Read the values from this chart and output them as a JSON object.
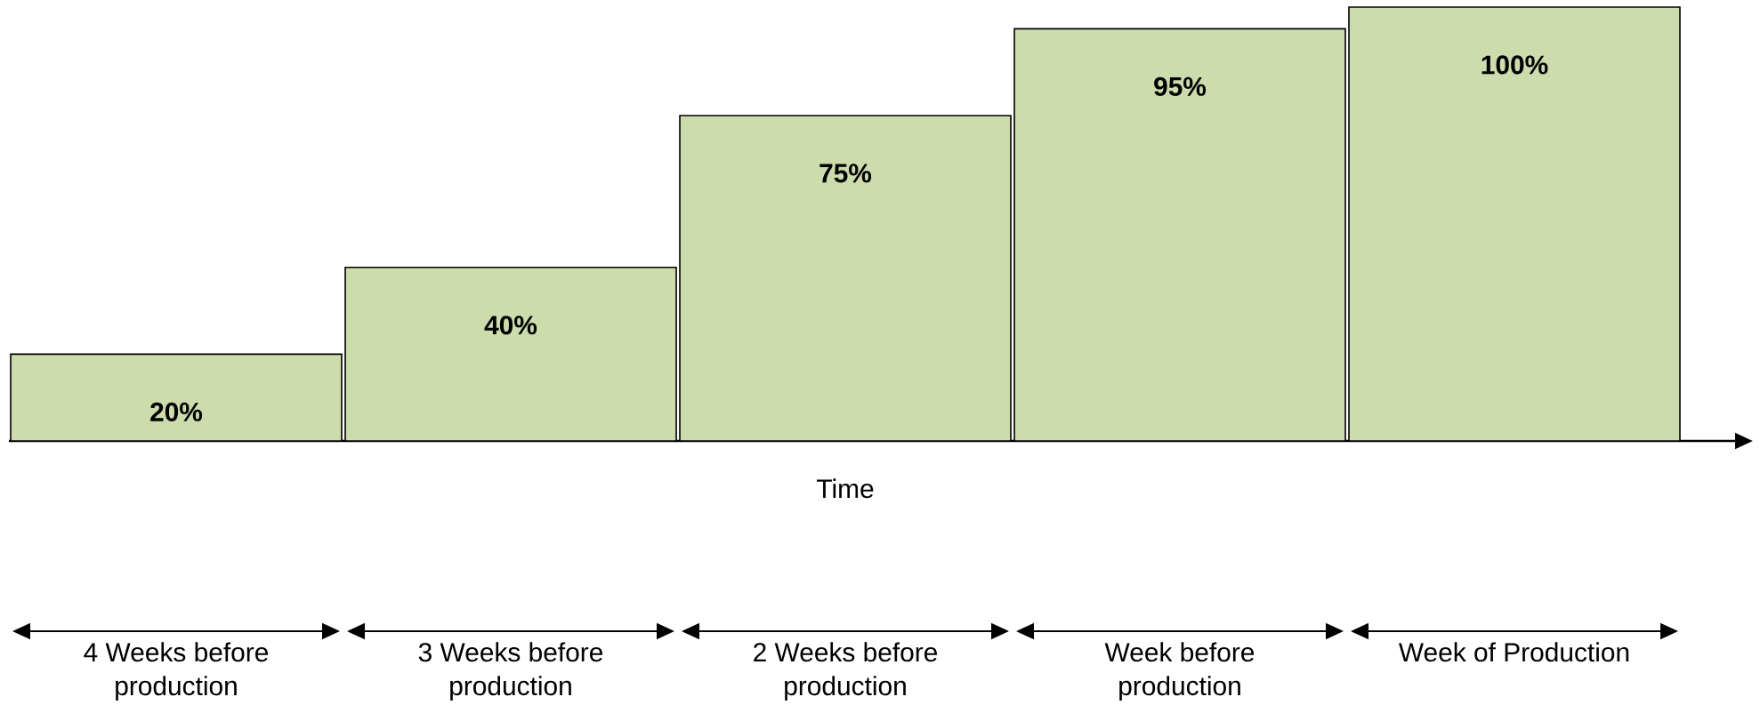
{
  "chart_data": {
    "type": "bar",
    "xlabel": "Time",
    "categories": [
      "4 Weeks before production",
      "3 Weeks before production",
      "2 Weeks before production",
      "Week before production",
      "Week of Production"
    ],
    "values": [
      20,
      40,
      75,
      95,
      100
    ],
    "value_labels": [
      "20%",
      "40%",
      "75%",
      "95%",
      "100%"
    ],
    "color": "#cddcac",
    "ylim": [
      0,
      100
    ],
    "tick_labels": "x"
  }
}
